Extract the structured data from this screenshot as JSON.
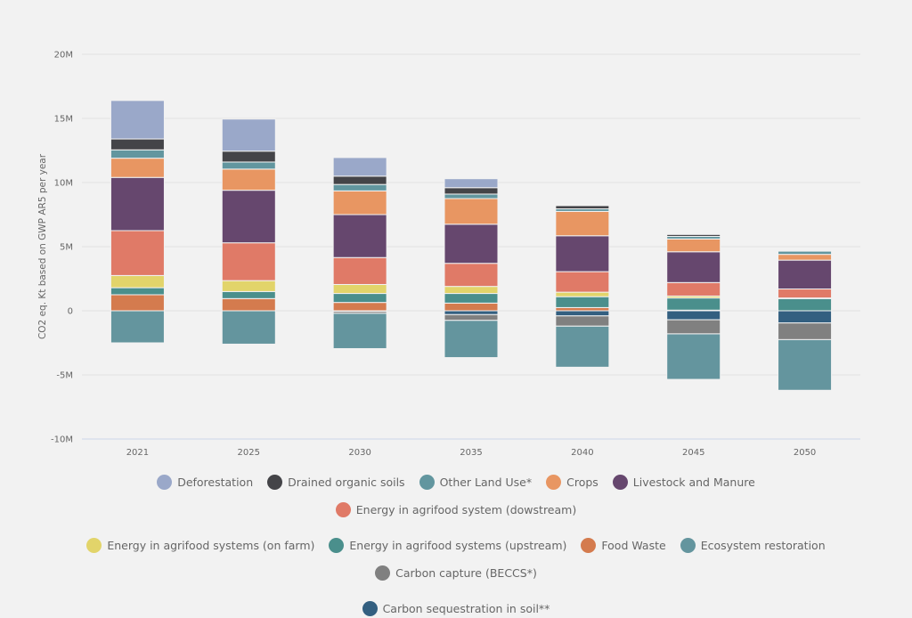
{
  "chart_data": {
    "type": "bar",
    "stacked": true,
    "title": "",
    "xlabel": "",
    "ylabel": "CO2 eq. Kt based on GWP AR5 per year",
    "ylim": [
      -10000000,
      20000000
    ],
    "yticks": [
      20000000,
      15000000,
      10000000,
      5000000,
      0,
      -5000000,
      -10000000
    ],
    "ytick_labels": [
      "20M",
      "15M",
      "10M",
      "5M",
      "0",
      "-5M",
      "-10M"
    ],
    "grid": true,
    "legend_position": "bottom",
    "categories": [
      "2021",
      "2025",
      "2030",
      "2035",
      "2040",
      "2045",
      "2050"
    ],
    "series": [
      {
        "name": "Food Waste",
        "color": "#d47b4e",
        "values": [
          1250000,
          950000,
          650000,
          600000,
          250000,
          50000,
          0
        ]
      },
      {
        "name": "Energy in agrifood systems (upstream)",
        "color": "#4a8f8c",
        "values": [
          550000,
          550000,
          700000,
          750000,
          850000,
          950000,
          950000
        ]
      },
      {
        "name": "Energy in agrifood systems (on farm)",
        "color": "#e2d46a",
        "values": [
          950000,
          850000,
          700000,
          550000,
          350000,
          150000,
          50000
        ]
      },
      {
        "name": "Energy in agrifood system (dowstream)",
        "color": "#e07a67",
        "values": [
          3500000,
          2950000,
          2100000,
          1800000,
          1600000,
          1050000,
          700000
        ]
      },
      {
        "name": "Livestock and Manure",
        "color": "#66476e",
        "values": [
          4150000,
          4100000,
          3350000,
          3050000,
          2800000,
          2400000,
          2250000
        ]
      },
      {
        "name": "Crops",
        "color": "#e89662",
        "values": [
          1500000,
          1650000,
          1850000,
          2000000,
          1900000,
          1000000,
          450000
        ]
      },
      {
        "name": "Other Land Use*",
        "color": "#62969f",
        "values": [
          650000,
          550000,
          500000,
          350000,
          200000,
          200000,
          250000
        ]
      },
      {
        "name": "Drained organic soils",
        "color": "#444448",
        "values": [
          850000,
          850000,
          650000,
          500000,
          250000,
          150000,
          50000
        ]
      },
      {
        "name": "Deforestation",
        "color": "#9aa8c9",
        "values": [
          3000000,
          2500000,
          1450000,
          700000,
          0,
          0,
          0
        ]
      },
      {
        "name": "Carbon sequestration in soil**",
        "color": "#335f80",
        "values": [
          0,
          0,
          -50000,
          -300000,
          -400000,
          -700000,
          -950000
        ]
      },
      {
        "name": "Carbon capture (BECCS*)",
        "color": "#808080",
        "values": [
          0,
          0,
          -150000,
          -450000,
          -800000,
          -1100000,
          -1300000
        ]
      },
      {
        "name": "Ecosystem restoration",
        "color": "#64959e",
        "values": [
          -2500000,
          -2600000,
          -2750000,
          -2900000,
          -3200000,
          -3550000,
          -3950000
        ]
      }
    ]
  },
  "legend": [
    {
      "label": "Deforestation",
      "color": "#9aa8c9"
    },
    {
      "label": "Drained organic soils",
      "color": "#444448"
    },
    {
      "label": "Other Land Use*",
      "color": "#62969f"
    },
    {
      "label": "Crops",
      "color": "#e89662"
    },
    {
      "label": "Livestock and Manure",
      "color": "#66476e"
    },
    {
      "label": "Energy in agrifood system (dowstream)",
      "color": "#e07a67"
    },
    {
      "label": "Energy in agrifood systems (on farm)",
      "color": "#e2d46a"
    },
    {
      "label": "Energy in agrifood systems (upstream)",
      "color": "#4a8f8c"
    },
    {
      "label": "Food Waste",
      "color": "#d47b4e"
    },
    {
      "label": "Ecosystem restoration",
      "color": "#64959e"
    },
    {
      "label": "Carbon capture (BECCS*)",
      "color": "#808080"
    },
    {
      "label": "Carbon sequestration in soil**",
      "color": "#335f80"
    }
  ]
}
